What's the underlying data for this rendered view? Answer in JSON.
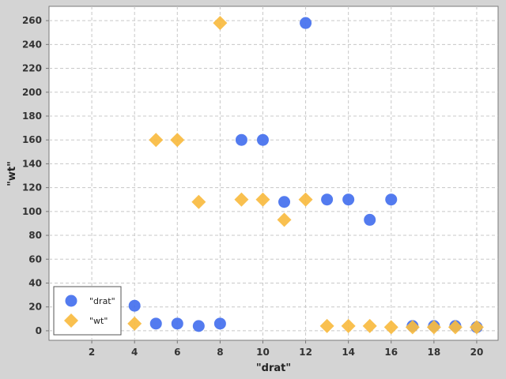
{
  "chart_data": {
    "type": "scatter",
    "xlabel": "\"drat\"",
    "ylabel": "\"wt\"",
    "xlim": [
      0,
      21
    ],
    "ylim": [
      -8,
      272
    ],
    "xticks": [
      2,
      4,
      6,
      8,
      10,
      12,
      14,
      16,
      18,
      20
    ],
    "yticks": [
      0,
      20,
      40,
      60,
      80,
      100,
      120,
      140,
      160,
      180,
      200,
      220,
      240,
      260
    ],
    "grid": true,
    "legend_position": "bottom-left",
    "series": [
      {
        "name": "\"drat\"",
        "marker": "circle",
        "color": "#4a74ee",
        "points": [
          [
            4,
            21
          ],
          [
            5,
            6
          ],
          [
            6,
            6
          ],
          [
            7,
            4
          ],
          [
            8,
            6
          ],
          [
            9,
            160
          ],
          [
            10,
            160
          ],
          [
            11,
            108
          ],
          [
            12,
            258
          ],
          [
            13,
            110
          ],
          [
            14,
            110
          ],
          [
            15,
            93
          ],
          [
            16,
            110
          ],
          [
            17,
            4
          ],
          [
            18,
            4
          ],
          [
            19,
            4
          ],
          [
            20,
            3
          ]
        ]
      },
      {
        "name": "\"wt\"",
        "marker": "diamond",
        "color": "#f9bb40",
        "points": [
          [
            4,
            6
          ],
          [
            5,
            160
          ],
          [
            6,
            160
          ],
          [
            7,
            108
          ],
          [
            8,
            258
          ],
          [
            9,
            110
          ],
          [
            10,
            110
          ],
          [
            11,
            93
          ],
          [
            12,
            110
          ],
          [
            13,
            4
          ],
          [
            14,
            4
          ],
          [
            15,
            4
          ],
          [
            16,
            3
          ],
          [
            17,
            3
          ],
          [
            18,
            3
          ],
          [
            19,
            3
          ],
          [
            20,
            3
          ]
        ]
      }
    ]
  }
}
